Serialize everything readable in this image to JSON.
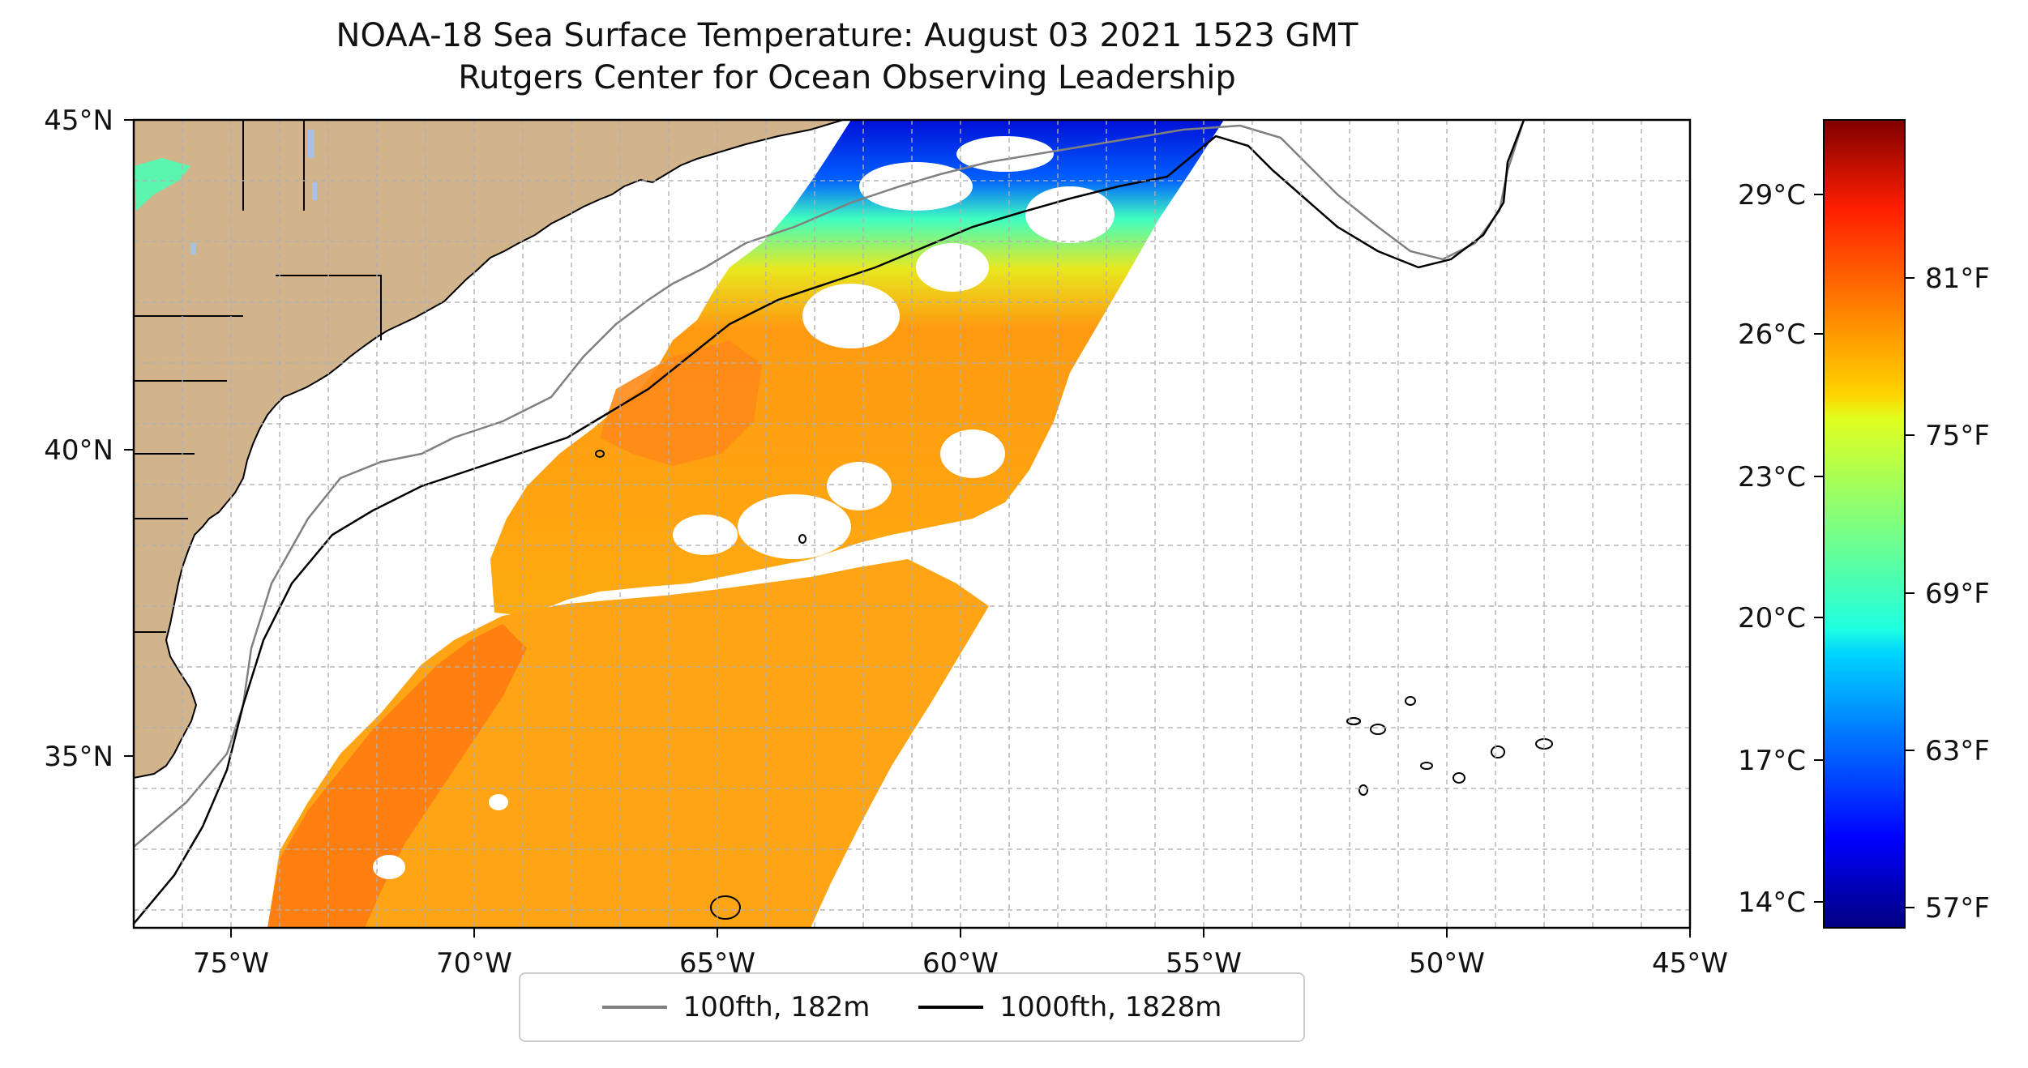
{
  "title": {
    "line1": "NOAA-18 Sea Surface Temperature: August 03 2021 1523 GMT",
    "line2": "Rutgers Center for Ocean Observing Leadership"
  },
  "map": {
    "lon_range": [
      -77,
      -45
    ],
    "lat_range": [
      32.2,
      45
    ],
    "lon_ticks": [
      "75°W",
      "70°W",
      "65°W",
      "60°W",
      "55°W",
      "50°W",
      "45°W"
    ],
    "lon_tick_values": [
      -75,
      -70,
      -65,
      -60,
      -55,
      -50,
      -45
    ],
    "lat_ticks": [
      "45°N",
      "40°N",
      "35°N"
    ],
    "lat_tick_values": [
      45,
      40,
      35
    ],
    "gridlines": true,
    "land_color": "#d2b48c",
    "lake_color": "#a6c0e8"
  },
  "legend": {
    "placement": "below",
    "entries": [
      {
        "label": "100fth, 182m",
        "color": "#808080"
      },
      {
        "label": "1000fth, 1828m",
        "color": "#000000"
      }
    ]
  },
  "colorbar": {
    "colormap": "jet",
    "celsius_ticks": [
      "29°C",
      "26°C",
      "23°C",
      "20°C",
      "17°C",
      "14°C"
    ],
    "celsius_values": [
      29,
      26,
      23,
      20,
      17,
      14
    ],
    "fahrenheit_ticks": [
      "81°F",
      "75°F",
      "69°F",
      "63°F",
      "57°F"
    ],
    "fahrenheit_values": [
      81,
      75,
      69,
      63,
      57
    ],
    "range_f": [
      56,
      86
    ]
  }
}
